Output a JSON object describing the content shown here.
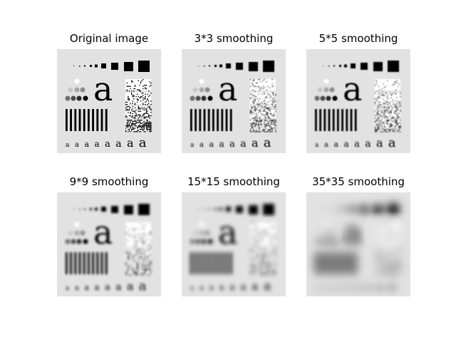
{
  "panels": [
    {
      "title": "Original image",
      "blur": 0
    },
    {
      "title": "3*3 smoothing",
      "blur": 0.5
    },
    {
      "title": "5*5 smoothing",
      "blur": 0.9
    },
    {
      "title": "9*9 smoothing",
      "blur": 1.6
    },
    {
      "title": "15*15 smoothing",
      "blur": 2.6
    },
    {
      "title": "35*35 smoothing",
      "blur": 6
    }
  ],
  "image_text": {
    "big_letter": "a",
    "small_letter": "a"
  }
}
